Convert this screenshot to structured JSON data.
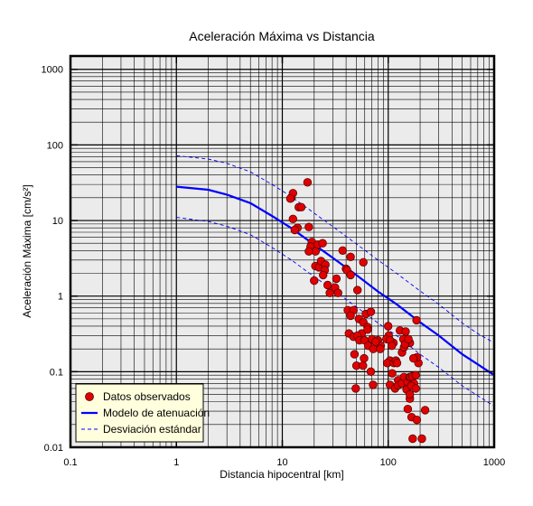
{
  "chart_data": {
    "type": "scatter",
    "title": "Aceleración Máxima vs Distancia",
    "xlabel": "Distancia hipocentral [km]",
    "ylabel": "Aceleración Máxima [cm/s²]",
    "x_scale": "log",
    "y_scale": "log",
    "xlim": [
      0.1,
      1000
    ],
    "ylim": [
      0.01,
      1500
    ],
    "x_ticks": [
      {
        "value": 0.1,
        "label": "0.1"
      },
      {
        "value": 1,
        "label": "1"
      },
      {
        "value": 10,
        "label": "10"
      },
      {
        "value": 100,
        "label": "100"
      },
      {
        "value": 1000,
        "label": "1000"
      }
    ],
    "y_ticks": [
      {
        "value": 0.01,
        "label": "0.01"
      },
      {
        "value": 0.1,
        "label": "0.1"
      },
      {
        "value": 1,
        "label": "1"
      },
      {
        "value": 10,
        "label": "10"
      },
      {
        "value": 100,
        "label": "100"
      },
      {
        "value": 1000,
        "label": "1000"
      }
    ],
    "grid": true,
    "legend_position": "bottom-left",
    "colors": {
      "plot_background": "#ebebeb",
      "grid": "#000000",
      "points": "#e00000",
      "point_edge": "#5a0000",
      "model": "#0000ff",
      "deviation": "#0000ff",
      "legend_background": "#ffffdd"
    },
    "series": [
      {
        "name": "Datos observados",
        "kind": "points",
        "points": [
          [
            17.3,
            32
          ],
          [
            12.2,
            20
          ],
          [
            12.6,
            23
          ],
          [
            11.9,
            19.5
          ],
          [
            14.3,
            15
          ],
          [
            15.1,
            15
          ],
          [
            12.6,
            10.5
          ],
          [
            13.9,
            8
          ],
          [
            13.1,
            7.5
          ],
          [
            17.8,
            8.2
          ],
          [
            19.0,
            5.2
          ],
          [
            18.5,
            4.5
          ],
          [
            21.6,
            4.8
          ],
          [
            24.0,
            5.0
          ],
          [
            20.6,
            3.9
          ],
          [
            17.8,
            3.9
          ],
          [
            20.5,
            2.5
          ],
          [
            22.2,
            2.4
          ],
          [
            23.2,
            2.9
          ],
          [
            25.5,
            2.6
          ],
          [
            25.1,
            2.2
          ],
          [
            37.1,
            4.0
          ],
          [
            44.1,
            3.3
          ],
          [
            39.9,
            2.3
          ],
          [
            40.8,
            2.2
          ],
          [
            58.2,
            2.8
          ],
          [
            44.1,
            1.9
          ],
          [
            24.3,
            1.9
          ],
          [
            32.4,
            1.7
          ],
          [
            20.0,
            1.6
          ],
          [
            26.8,
            1.4
          ],
          [
            28.1,
            1.1
          ],
          [
            31.4,
            1.3
          ],
          [
            33.6,
            1.1
          ],
          [
            51.2,
            1.2
          ],
          [
            41.5,
            0.65
          ],
          [
            47.0,
            0.65
          ],
          [
            44.1,
            0.55
          ],
          [
            52.9,
            0.5
          ],
          [
            61.5,
            0.58
          ],
          [
            58.2,
            0.45
          ],
          [
            63.9,
            0.39
          ],
          [
            68.5,
            0.62
          ],
          [
            56.2,
            0.32
          ],
          [
            63.9,
            0.36
          ],
          [
            42.6,
            0.32
          ],
          [
            70.4,
            0.27
          ],
          [
            79.9,
            0.26
          ],
          [
            84.9,
            0.22
          ],
          [
            99.9,
            0.4
          ],
          [
            112,
            0.24
          ],
          [
            129,
            0.35
          ],
          [
            139,
            0.27
          ],
          [
            135,
            0.18
          ],
          [
            101,
            0.3
          ],
          [
            96.1,
            0.27
          ],
          [
            104,
            0.26
          ],
          [
            108,
            0.22
          ],
          [
            47.0,
            0.29
          ],
          [
            51.2,
            0.3
          ],
          [
            53.5,
            0.26
          ],
          [
            59.7,
            0.26
          ],
          [
            64.9,
            0.22
          ],
          [
            72.3,
            0.2
          ],
          [
            76.0,
            0.25
          ],
          [
            84.2,
            0.2
          ],
          [
            48.0,
            0.17
          ],
          [
            50.1,
            0.12
          ],
          [
            59.1,
            0.15
          ],
          [
            57.8,
            0.12
          ],
          [
            49.4,
            0.06
          ],
          [
            68.5,
            0.1
          ],
          [
            71.9,
            0.067
          ],
          [
            104,
            0.14
          ],
          [
            97.9,
            0.13
          ],
          [
            113,
            0.13
          ],
          [
            118,
            0.14
          ],
          [
            104,
            0.067
          ],
          [
            116,
            0.06
          ],
          [
            124,
            0.077
          ],
          [
            124,
            0.066
          ],
          [
            134,
            0.07
          ],
          [
            141,
            0.085
          ],
          [
            152,
            0.073
          ],
          [
            159,
            0.085
          ],
          [
            149,
            0.058
          ],
          [
            162,
            0.085
          ],
          [
            169,
            0.087
          ],
          [
            175,
            0.07
          ],
          [
            165,
            0.065
          ],
          [
            182,
            0.06
          ],
          [
            182,
            0.09
          ],
          [
            193,
            0.13
          ],
          [
            187,
            0.155
          ],
          [
            173,
            0.15
          ],
          [
            160,
            0.044
          ],
          [
            160,
            0.05
          ],
          [
            153,
            0.032
          ],
          [
            166,
            0.025
          ],
          [
            186,
            0.023
          ],
          [
            223,
            0.031
          ],
          [
            170,
            0.013
          ],
          [
            208,
            0.013
          ],
          [
            141,
            0.21
          ],
          [
            185,
            0.48
          ],
          [
            160,
            0.24
          ],
          [
            146,
            0.34
          ],
          [
            144,
            0.23
          ],
          [
            155,
            0.27
          ],
          [
            109,
            0.095
          ],
          [
            121,
            0.13
          ]
        ]
      },
      {
        "name": "Modelo de atenuación",
        "kind": "line",
        "style": "solid",
        "points": [
          [
            1,
            28
          ],
          [
            2,
            25.5
          ],
          [
            3,
            22
          ],
          [
            5,
            17
          ],
          [
            8,
            11.5
          ],
          [
            12,
            8
          ],
          [
            20,
            4.8
          ],
          [
            30,
            3.2
          ],
          [
            50,
            1.9
          ],
          [
            80,
            1.15
          ],
          [
            120,
            0.78
          ],
          [
            200,
            0.45
          ],
          [
            300,
            0.3
          ],
          [
            500,
            0.17
          ],
          [
            700,
            0.125
          ],
          [
            1000,
            0.09
          ]
        ]
      },
      {
        "name": "Desviación estándar",
        "kind": "line",
        "style": "dashed",
        "points": [
          [
            1,
            72
          ],
          [
            2,
            65
          ],
          [
            3,
            57
          ],
          [
            5,
            44
          ],
          [
            8,
            30
          ],
          [
            12,
            21
          ],
          [
            20,
            12.5
          ],
          [
            30,
            8.3
          ],
          [
            50,
            4.9
          ],
          [
            80,
            3.0
          ],
          [
            120,
            2.0
          ],
          [
            200,
            1.17
          ],
          [
            300,
            0.78
          ],
          [
            500,
            0.44
          ],
          [
            700,
            0.32
          ],
          [
            1000,
            0.24
          ]
        ]
      },
      {
        "kind": "line",
        "style": "dashed",
        "points": [
          [
            1,
            11
          ],
          [
            2,
            9.7
          ],
          [
            3,
            8.4
          ],
          [
            5,
            6.5
          ],
          [
            8,
            4.4
          ],
          [
            12,
            3.05
          ],
          [
            20,
            1.8
          ],
          [
            30,
            1.22
          ],
          [
            50,
            0.72
          ],
          [
            80,
            0.44
          ],
          [
            120,
            0.3
          ],
          [
            200,
            0.17
          ],
          [
            300,
            0.114
          ],
          [
            500,
            0.065
          ],
          [
            700,
            0.048
          ],
          [
            1000,
            0.035
          ]
        ]
      }
    ]
  }
}
